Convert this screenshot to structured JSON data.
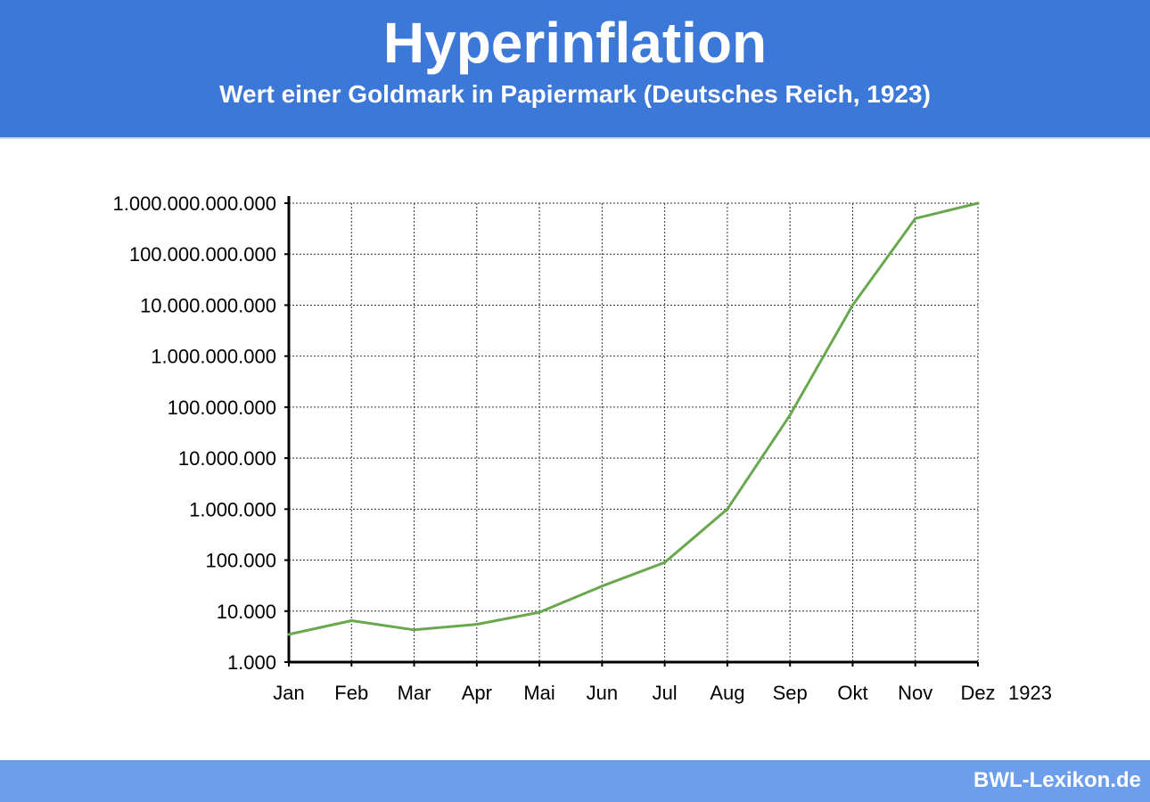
{
  "header": {
    "title": "Hyperinflation",
    "subtitle": "Wert einer Goldmark in Papiermark (Deutsches Reich, 1923)"
  },
  "footer": {
    "brand": "BWL-Lexikon.de"
  },
  "colors": {
    "header_bg": "#3c78d8",
    "footer_bg": "#6d9eeb",
    "line": "#6aa84f"
  },
  "chart_data": {
    "type": "line",
    "y_scale": "log",
    "ylim": [
      1000,
      1000000000000
    ],
    "grid": true,
    "x_year_label": "1923",
    "categories": [
      "Jan",
      "Feb",
      "Mar",
      "Apr",
      "Mai",
      "Jun",
      "Jul",
      "Aug",
      "Sep",
      "Okt",
      "Nov",
      "Dez"
    ],
    "values": [
      3500,
      6500,
      4300,
      5500,
      9500,
      31000,
      90000,
      1000000,
      70000000,
      10000000000,
      500000000000,
      1000000000000
    ],
    "y_ticks": [
      {
        "value": 1000,
        "label": "1.000"
      },
      {
        "value": 10000,
        "label": "10.000"
      },
      {
        "value": 100000,
        "label": "100.000"
      },
      {
        "value": 1000000,
        "label": "1.000.000"
      },
      {
        "value": 10000000,
        "label": "10.000.000"
      },
      {
        "value": 100000000,
        "label": "100.000.000"
      },
      {
        "value": 1000000000,
        "label": "1.000.000.000"
      },
      {
        "value": 10000000000,
        "label": "10.000.000.000"
      },
      {
        "value": 100000000000,
        "label": "100.000.000.000"
      },
      {
        "value": 1000000000000,
        "label": "1.000.000.000.000"
      }
    ]
  }
}
